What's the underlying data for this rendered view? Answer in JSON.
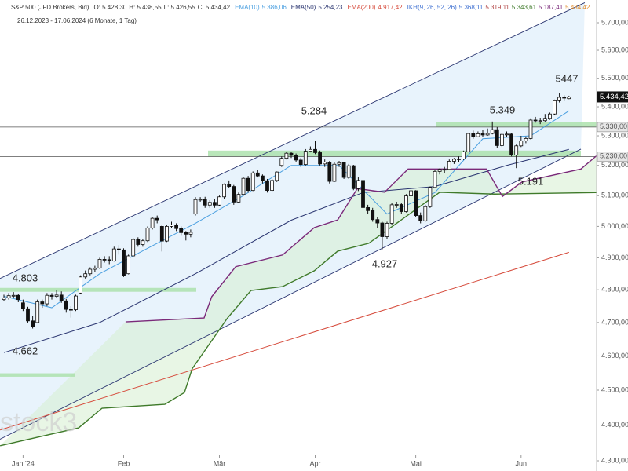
{
  "chart_data": {
    "type": "candlestick",
    "log": true,
    "grid": false,
    "header": [
      {
        "text": "S&P 500 (JFD Brokers, Bid)",
        "color": "#333333"
      },
      {
        "text": "O: 5.428,30",
        "color": "#333333"
      },
      {
        "text": "H: 5.438,55",
        "color": "#333333"
      },
      {
        "text": "L: 5.426,55",
        "color": "#333333"
      },
      {
        "text": "C: 5.434,42",
        "color": "#333333"
      },
      {
        "text": "EMA(10)",
        "color": "#4a9fe0"
      },
      {
        "text": "5.386,06",
        "color": "#4a9fe0"
      },
      {
        "text": "EMA(50)",
        "color": "#2a3570"
      },
      {
        "text": "5.254,23",
        "color": "#2a3570"
      },
      {
        "text": "EMA(200)",
        "color": "#d64b3c"
      },
      {
        "text": "4.917,42",
        "color": "#d64b3c"
      },
      {
        "text": "IKH(9, 26, 52, 26)",
        "color": "#3d6fd1"
      },
      {
        "text": "5.368,11",
        "color": "#3d6fd1"
      },
      {
        "text": "5.319,11",
        "color": "#b04040"
      },
      {
        "text": "5.343,61",
        "color": "#3f7a2a"
      },
      {
        "text": "5.187,41",
        "color": "#7b2a7a"
      },
      {
        "text": "5.434,42",
        "color": "#e08a2a"
      }
    ],
    "subtitle": "26.12.2023 - 17.06.2024 (6 Monate, 1 Tag)",
    "watermark": "stock3",
    "annotations": [
      "5447",
      "5.349",
      "5.284",
      "5.191",
      "4.927",
      "4.803",
      "4.662"
    ],
    "last_price_label": "5.434,42",
    "levels": [
      {
        "value": 5330,
        "label": "5.330,00"
      },
      {
        "value": 5230,
        "label": "5.230,00"
      }
    ],
    "zones": [
      {
        "low": 5330,
        "high": 5346,
        "color": "#a8e0a8"
      },
      {
        "low": 5229,
        "high": 5250,
        "color": "#a8e0a8"
      },
      {
        "low": 4794,
        "high": 4806,
        "color": "#a8e0a8"
      },
      {
        "low": 4539,
        "high": 4549,
        "color": "#a8e0a8"
      }
    ],
    "xlim": [
      -0.82,
      123.77
    ],
    "ylim": [
      4300,
      5700
    ],
    "xticks": [
      {
        "value": 4,
        "label": "Jan '24"
      },
      {
        "value": 25,
        "label": "Feb"
      },
      {
        "value": 45,
        "label": "Mär"
      },
      {
        "value": 65,
        "label": "Apr"
      },
      {
        "value": 86,
        "label": "Mai"
      },
      {
        "value": 108,
        "label": "Jun"
      }
    ],
    "yticks": [
      {
        "value": 4300,
        "label": "4.300,00"
      },
      {
        "value": 4400,
        "label": "4.400,00"
      },
      {
        "value": 4500,
        "label": "4.500,00"
      },
      {
        "value": 4600,
        "label": "4.600,00"
      },
      {
        "value": 4700,
        "label": "4.700,00"
      },
      {
        "value": 4800,
        "label": "4.800,00"
      },
      {
        "value": 4900,
        "label": "4.900,00"
      },
      {
        "value": 5000,
        "label": "5.000,00"
      },
      {
        "value": 5100,
        "label": "5.100,00"
      },
      {
        "value": 5200,
        "label": "5.200,00"
      },
      {
        "value": 5300,
        "label": "5.300,00"
      },
      {
        "value": 5400,
        "label": "5.400,00"
      },
      {
        "value": 5500,
        "label": "5.500,00"
      },
      {
        "value": 5600,
        "label": "5.600,00"
      },
      {
        "value": 5700,
        "label": "5.700,00"
      }
    ],
    "ohlc": [
      [
        4770,
        4785,
        4765,
        4775
      ],
      [
        4775,
        4790,
        4770,
        4782
      ],
      [
        4782,
        4793,
        4775,
        4783
      ],
      [
        4783,
        4788,
        4762,
        4770
      ],
      [
        4760,
        4770,
        4735,
        4742
      ],
      [
        4742,
        4748,
        4700,
        4705
      ],
      [
        4705,
        4720,
        4682,
        4688
      ],
      [
        4700,
        4770,
        4698,
        4763
      ],
      [
        4763,
        4770,
        4745,
        4757
      ],
      [
        4757,
        4790,
        4750,
        4783
      ],
      [
        4783,
        4790,
        4770,
        4780
      ],
      [
        4780,
        4798,
        4775,
        4784
      ],
      [
        4784,
        4795,
        4760,
        4766
      ],
      [
        4766,
        4772,
        4730,
        4740
      ],
      [
        4740,
        4750,
        4715,
        4739
      ],
      [
        4739,
        4785,
        4735,
        4781
      ],
      [
        4790,
        4845,
        4788,
        4840
      ],
      [
        4840,
        4860,
        4835,
        4850
      ],
      [
        4850,
        4870,
        4845,
        4864
      ],
      [
        4864,
        4875,
        4855,
        4868
      ],
      [
        4868,
        4900,
        4865,
        4895
      ],
      [
        4895,
        4905,
        4885,
        4894
      ],
      [
        4894,
        4905,
        4880,
        4890
      ],
      [
        4890,
        4935,
        4888,
        4928
      ],
      [
        4928,
        4940,
        4910,
        4925
      ],
      [
        4925,
        4930,
        4840,
        4845
      ],
      [
        4850,
        4910,
        4848,
        4906
      ],
      [
        4906,
        4962,
        4903,
        4958
      ],
      [
        4958,
        4965,
        4935,
        4942
      ],
      [
        4942,
        4960,
        4935,
        4954
      ],
      [
        4954,
        5000,
        4950,
        4995
      ],
      [
        4995,
        5030,
        4990,
        5026
      ],
      [
        5026,
        5035,
        5010,
        5021
      ],
      [
        5000,
        5005,
        4920,
        4953
      ],
      [
        4953,
        5005,
        4950,
        5000
      ],
      [
        5000,
        5015,
        4995,
        5005
      ],
      [
        5005,
        5010,
        4985,
        4993
      ],
      [
        4993,
        5000,
        4970,
        4980
      ],
      [
        4980,
        4985,
        4955,
        4975
      ],
      [
        4975,
        4990,
        4965,
        4981
      ],
      [
        5040,
        5095,
        5035,
        5087
      ],
      [
        5087,
        5095,
        5080,
        5088
      ],
      [
        5088,
        5096,
        5060,
        5069
      ],
      [
        5069,
        5085,
        5060,
        5078
      ],
      [
        5078,
        5090,
        5060,
        5069
      ],
      [
        5069,
        5100,
        5065,
        5096
      ],
      [
        5096,
        5140,
        5090,
        5137
      ],
      [
        5137,
        5150,
        5125,
        5130
      ],
      [
        5130,
        5135,
        5070,
        5079
      ],
      [
        5079,
        5110,
        5075,
        5104
      ],
      [
        5104,
        5160,
        5100,
        5157
      ],
      [
        5157,
        5165,
        5110,
        5117
      ],
      [
        5117,
        5180,
        5115,
        5175
      ],
      [
        5175,
        5185,
        5160,
        5165
      ],
      [
        5165,
        5170,
        5140,
        5149
      ],
      [
        5149,
        5155,
        5110,
        5117
      ],
      [
        5117,
        5155,
        5115,
        5150
      ],
      [
        5150,
        5180,
        5145,
        5178
      ],
      [
        5200,
        5230,
        5195,
        5224
      ],
      [
        5224,
        5245,
        5220,
        5241
      ],
      [
        5241,
        5245,
        5225,
        5234
      ],
      [
        5234,
        5240,
        5210,
        5218
      ],
      [
        5218,
        5225,
        5195,
        5203
      ],
      [
        5203,
        5255,
        5200,
        5248
      ],
      [
        5248,
        5264,
        5244,
        5254
      ],
      [
        5254,
        5284,
        5238,
        5243
      ],
      [
        5243,
        5250,
        5200,
        5205
      ],
      [
        5205,
        5220,
        5195,
        5211
      ],
      [
        5211,
        5215,
        5140,
        5147
      ],
      [
        5147,
        5210,
        5145,
        5204
      ],
      [
        5204,
        5215,
        5195,
        5209
      ],
      [
        5209,
        5212,
        5155,
        5160
      ],
      [
        5160,
        5205,
        5155,
        5199
      ],
      [
        5199,
        5202,
        5118,
        5123
      ],
      [
        5123,
        5160,
        5115,
        5150
      ],
      [
        5150,
        5155,
        5055,
        5061
      ],
      [
        5061,
        5070,
        5040,
        5051
      ],
      [
        5051,
        5060,
        5015,
        5022
      ],
      [
        5022,
        5030,
        4995,
        5011
      ],
      [
        5011,
        5015,
        4927,
        4967
      ],
      [
        4967,
        5015,
        4960,
        5010
      ],
      [
        5010,
        5075,
        5005,
        5070
      ],
      [
        5070,
        5080,
        5060,
        5071
      ],
      [
        5071,
        5075,
        5040,
        5048
      ],
      [
        5048,
        5105,
        5045,
        5099
      ],
      [
        5099,
        5125,
        5095,
        5116
      ],
      [
        5116,
        5118,
        5030,
        5035
      ],
      [
        5035,
        5045,
        5010,
        5018
      ],
      [
        5018,
        5070,
        5015,
        5064
      ],
      [
        5064,
        5130,
        5060,
        5127
      ],
      [
        5127,
        5185,
        5125,
        5180
      ],
      [
        5180,
        5190,
        5170,
        5187
      ],
      [
        5187,
        5195,
        5175,
        5187
      ],
      [
        5187,
        5220,
        5185,
        5214
      ],
      [
        5214,
        5225,
        5205,
        5221
      ],
      [
        5221,
        5230,
        5210,
        5222
      ],
      [
        5222,
        5250,
        5218,
        5246
      ],
      [
        5246,
        5310,
        5245,
        5308
      ],
      [
        5308,
        5318,
        5290,
        5297
      ],
      [
        5297,
        5315,
        5295,
        5307
      ],
      [
        5307,
        5320,
        5295,
        5303
      ],
      [
        5303,
        5325,
        5300,
        5308
      ],
      [
        5308,
        5349,
        5305,
        5321
      ],
      [
        5321,
        5330,
        5260,
        5267
      ],
      [
        5267,
        5310,
        5262,
        5305
      ],
      [
        5305,
        5315,
        5295,
        5306
      ],
      [
        5306,
        5310,
        5230,
        5235
      ],
      [
        5235,
        5270,
        5191,
        5266
      ],
      [
        5266,
        5300,
        5262,
        5283
      ],
      [
        5283,
        5298,
        5275,
        5291
      ],
      [
        5291,
        5360,
        5288,
        5354
      ],
      [
        5354,
        5365,
        5345,
        5352
      ],
      [
        5352,
        5362,
        5340,
        5352
      ],
      [
        5352,
        5375,
        5348,
        5360
      ],
      [
        5360,
        5380,
        5355,
        5375
      ],
      [
        5375,
        5425,
        5372,
        5421
      ],
      [
        5421,
        5447,
        5415,
        5433
      ],
      [
        5433,
        5440,
        5420,
        5431
      ],
      [
        5428.3,
        5438.55,
        5426.55,
        5434.42
      ]
    ],
    "trendlines": [
      {
        "color": "#2a3570",
        "x": [
          -1,
          121.3
        ],
        "values": [
          4834,
          5774
        ]
      },
      {
        "color": "#2a3570",
        "x": [
          -1,
          120.5
        ],
        "values": [
          4359,
          5255
        ]
      }
    ],
    "series": [
      {
        "name": "EMA(200)",
        "color": "#d64b3c",
        "x": [
          -0.8,
          118
        ],
        "values": [
          4386,
          4917.42
        ]
      },
      {
        "name": "EMA(50)",
        "color": "#2a3570",
        "x": [
          0,
          20,
          40,
          60,
          75,
          90,
          105,
          118
        ],
        "values": [
          4610,
          4700,
          4850,
          5020,
          5110,
          5130,
          5200,
          5254.23
        ]
      },
      {
        "name": "EMA(10)",
        "color": "#4a9fe0",
        "x": [
          0,
          10,
          20,
          30,
          40,
          50,
          60,
          70,
          80,
          90,
          100,
          110,
          118
        ],
        "values": [
          4780,
          4745,
          4850,
          4930,
          5010,
          5100,
          5200,
          5200,
          5040,
          5110,
          5290,
          5300,
          5386.06
        ]
      },
      {
        "name": "IKH A",
        "color": "#3f7a2a",
        "x": [
          -0.8,
          15.6,
          20.5,
          33.6,
          37.7,
          39.3,
          46.7,
          51.6,
          58.2,
          64.8,
          69.7,
          76.2,
          91,
          102.5,
          123.8
        ],
        "values": [
          4342,
          4392,
          4448,
          4459,
          4493,
          4562,
          4714,
          4798,
          4810,
          4859,
          4921,
          4946,
          5111,
          5105,
          5110
        ]
      },
      {
        "name": "IKH B",
        "color": "#7b2a7a",
        "x": [
          25.4,
          41.8,
          43.4,
          48.4,
          58.2,
          64.8,
          69.7,
          73.8,
          79.5,
          84.4,
          100.8,
          104.1,
          108.2,
          120.5,
          123.8
        ],
        "values": [
          4702,
          4714,
          4779,
          4872,
          4909,
          4996,
          5021,
          5123,
          5111,
          5188,
          5188,
          5097,
          5145,
          5188,
          5233
        ]
      }
    ]
  }
}
